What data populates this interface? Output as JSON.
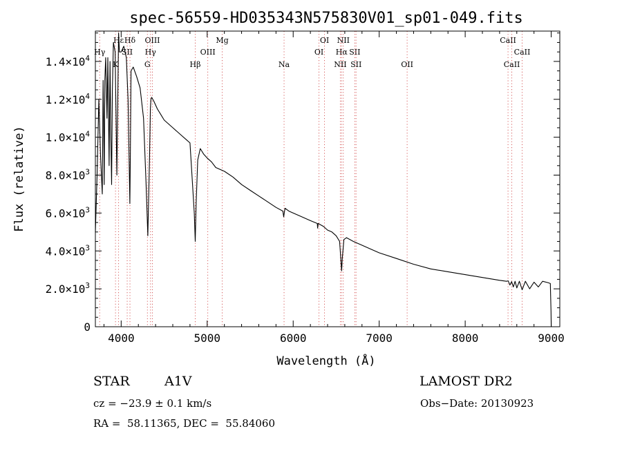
{
  "chart_data": {
    "type": "line",
    "title": "spec-56559-HD035343N575830V01_sp01-049.fits",
    "xlabel": "Wavelength (Å)",
    "ylabel": "Flux (relative)",
    "xlim": [
      3700,
      9100
    ],
    "ylim": [
      0,
      15600
    ],
    "xticks": [
      4000,
      5000,
      6000,
      7000,
      8000,
      9000
    ],
    "xtick_labels": [
      "4000",
      "5000",
      "6000",
      "7000",
      "8000",
      "9000"
    ],
    "yticks": [
      {
        "value": 0,
        "mantissa": "0",
        "exp": ""
      },
      {
        "value": 2000,
        "mantissa": "2.0×10",
        "exp": "3"
      },
      {
        "value": 4000,
        "mantissa": "4.0×10",
        "exp": "3"
      },
      {
        "value": 6000,
        "mantissa": "6.0×10",
        "exp": "3"
      },
      {
        "value": 8000,
        "mantissa": "8.0×10",
        "exp": "3"
      },
      {
        "value": 10000,
        "mantissa": "1.0×10",
        "exp": "4"
      },
      {
        "value": 12000,
        "mantissa": "1.2×10",
        "exp": "4"
      },
      {
        "value": 14000,
        "mantissa": "1.4×10",
        "exp": "4"
      }
    ],
    "series": [
      {
        "x": [
          3700,
          3720,
          3740,
          3760,
          3780,
          3790,
          3797,
          3803,
          3810,
          3820,
          3835,
          3845,
          3860,
          3870,
          3880,
          3889,
          3898,
          3910,
          3930,
          3950,
          3960,
          3970,
          3980,
          4000,
          4030,
          4060,
          4080,
          4095,
          4101,
          4107,
          4115,
          4140,
          4180,
          4220,
          4260,
          4290,
          4310,
          4330,
          4340,
          4346,
          4355,
          4380,
          4420,
          4460,
          4500,
          4550,
          4600,
          4650,
          4700,
          4750,
          4800,
          4830,
          4850,
          4861,
          4872,
          4890,
          4920,
          4960,
          5000,
          5050,
          5100,
          5150,
          5200,
          5300,
          5400,
          5500,
          5600,
          5700,
          5800,
          5880,
          5890,
          5896,
          5905,
          5950,
          6000,
          6100,
          6200,
          6280,
          6284,
          6290,
          6350,
          6400,
          6450,
          6500,
          6540,
          6555,
          6563,
          6571,
          6590,
          6620,
          6700,
          6800,
          6900,
          7000,
          7200,
          7400,
          7600,
          7800,
          8000,
          8200,
          8400,
          8480,
          8500,
          8520,
          8540,
          8560,
          8580,
          8600,
          8630,
          8662,
          8700,
          8750,
          8800,
          8850,
          8900,
          8960,
          8990,
          8998,
          9000
        ],
        "y": [
          5000,
          8000,
          12000,
          9000,
          7000,
          13000,
          10500,
          7500,
          13000,
          14200,
          11000,
          14200,
          8500,
          14000,
          10000,
          7500,
          12500,
          15000,
          14500,
          8000,
          12000,
          15500,
          14500,
          14500,
          14800,
          14200,
          12000,
          8000,
          6500,
          9000,
          13500,
          13700,
          13200,
          12600,
          11000,
          7500,
          4800,
          9000,
          11500,
          12000,
          12100,
          11900,
          11500,
          11200,
          10900,
          10700,
          10500,
          10300,
          10100,
          9900,
          9700,
          7500,
          6000,
          4500,
          6500,
          8800,
          9400,
          9100,
          8900,
          8700,
          8400,
          8300,
          8200,
          7900,
          7500,
          7200,
          6900,
          6600,
          6300,
          6100,
          5800,
          6000,
          6250,
          6100,
          6000,
          5800,
          5600,
          5450,
          5200,
          5450,
          5300,
          5100,
          5000,
          4800,
          4500,
          3500,
          2950,
          3600,
          4600,
          4700,
          4500,
          4300,
          4100,
          3900,
          3600,
          3300,
          3050,
          2900,
          2750,
          2600,
          2450,
          2400,
          2420,
          2200,
          2380,
          2100,
          2400,
          2050,
          2400,
          1950,
          2400,
          2000,
          2350,
          2100,
          2400,
          2330,
          2280,
          800,
          0
        ]
      }
    ],
    "line_markers": [
      {
        "label": "Hε",
        "wavelength": 3970,
        "row": 1
      },
      {
        "label": "Hγ",
        "wavelength": 3750,
        "row": 2
      },
      {
        "label": "K",
        "wavelength": 3934,
        "row": 3
      },
      {
        "label": "Hδ",
        "wavelength": 4102,
        "row": 1
      },
      {
        "label": "SII",
        "wavelength": 4070,
        "row": 2
      },
      {
        "label": "OIII",
        "wavelength": 4363,
        "row": 1
      },
      {
        "label": "Hγ",
        "wavelength": 4341,
        "row": 2
      },
      {
        "label": "G",
        "wavelength": 4305,
        "row": 3
      },
      {
        "label": "Hβ",
        "wavelength": 4861,
        "row": 3
      },
      {
        "label": "OIII",
        "wavelength": 5007,
        "row": 2
      },
      {
        "label": "Mg",
        "wavelength": 5175,
        "row": 1
      },
      {
        "label": "Na",
        "wavelength": 5894,
        "row": 3
      },
      {
        "label": "OI",
        "wavelength": 6364,
        "row": 1
      },
      {
        "label": "OI",
        "wavelength": 6300,
        "row": 2
      },
      {
        "label": "NII",
        "wavelength": 6583,
        "row": 1
      },
      {
        "label": "Hα",
        "wavelength": 6563,
        "row": 2
      },
      {
        "label": "SII",
        "wavelength": 6716,
        "row": 2
      },
      {
        "label": "NII",
        "wavelength": 6548,
        "row": 3
      },
      {
        "label": "SII",
        "wavelength": 6731,
        "row": 3
      },
      {
        "label": "OII",
        "wavelength": 7325,
        "row": 3
      },
      {
        "label": "CaII",
        "wavelength": 8498,
        "row": 1
      },
      {
        "label": "CaII",
        "wavelength": 8662,
        "row": 2
      },
      {
        "label": "CaII",
        "wavelength": 8542,
        "row": 3
      }
    ],
    "grid": false,
    "legend": "none"
  },
  "footer": {
    "object_class": "STAR",
    "subclass": "A1V",
    "survey": "LAMOST DR2",
    "velocity": "cz = −23.9 ± 0.1 km/s",
    "obs_date": "Obs−Date: 20130923",
    "coords": "RA =  58.11365, DEC =  55.84060"
  }
}
